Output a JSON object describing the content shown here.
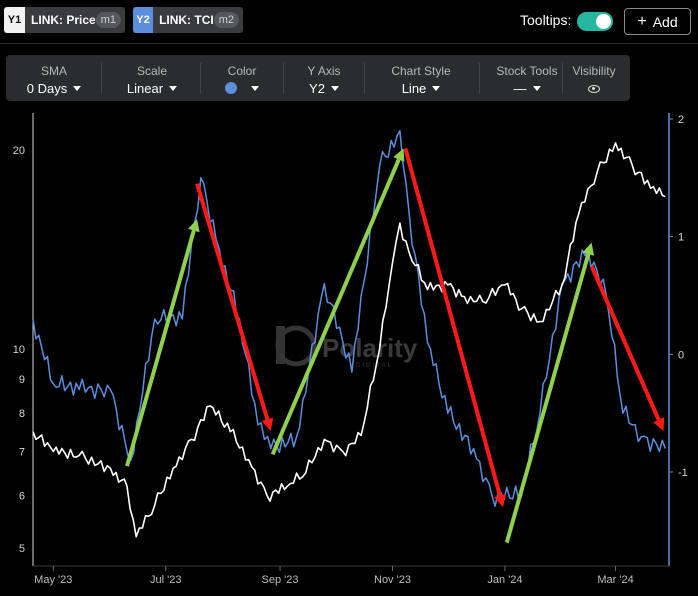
{
  "series_chips": [
    {
      "tag": "Y1",
      "label": "LINK: Price",
      "marker": "m1"
    },
    {
      "tag": "Y2",
      "label": "LINK: TCI",
      "marker": "m2"
    }
  ],
  "header": {
    "tooltips_label": "Tooltips:",
    "tooltips_on": true,
    "add_icon": "plus-icon",
    "add_label": "Add"
  },
  "toolbar": {
    "sma_label": "SMA",
    "sma_value": "0 Days",
    "scale_label": "Scale",
    "scale_value": "Linear",
    "color_label": "Color",
    "color_value": "#5b8fdc",
    "yaxis_label": "Y Axis",
    "yaxis_value": "Y2",
    "style_label": "Chart Style",
    "style_value": "Line",
    "tools_label": "Stock Tools",
    "tools_value": "—",
    "visibility_label": "Visibility",
    "visibility_icon": "eye-icon"
  },
  "watermark": {
    "brand": "Polarity",
    "sub": "DIGITAL"
  },
  "chart_data": {
    "type": "line",
    "left_axis": {
      "scale": "log",
      "ticks": [
        5,
        6,
        7,
        8,
        9,
        10,
        20
      ]
    },
    "right_axis": {
      "ticks": [
        2,
        1,
        0,
        -1
      ]
    },
    "x_ticks": [
      "May '23",
      "Jul '23",
      "Sep '23",
      "Nov '23",
      "Jan '24",
      "Mar '24"
    ],
    "series": [
      {
        "color": "#ffffff",
        "axis": "left",
        "x": [
          "2023-04-20",
          "2023-05-01",
          "2023-05-15",
          "2023-06-01",
          "2023-06-10",
          "2023-06-15",
          "2023-06-25",
          "2023-07-05",
          "2023-07-15",
          "2023-07-25",
          "2023-08-05",
          "2023-08-15",
          "2023-08-25",
          "2023-09-05",
          "2023-09-15",
          "2023-09-25",
          "2023-10-05",
          "2023-10-15",
          "2023-10-25",
          "2023-11-01",
          "2023-11-05",
          "2023-11-10",
          "2023-11-20",
          "2023-12-01",
          "2023-12-10",
          "2023-12-20",
          "2024-01-01",
          "2024-01-10",
          "2024-01-20",
          "2024-02-01",
          "2024-02-10",
          "2024-02-20",
          "2024-03-01",
          "2024-03-10",
          "2024-03-20",
          "2024-03-28"
        ],
        "y": [
          7.5,
          7.0,
          6.9,
          6.6,
          6.2,
          5.2,
          5.8,
          6.6,
          7.3,
          8.2,
          7.5,
          6.8,
          6.0,
          6.2,
          6.5,
          7.3,
          7.0,
          7.4,
          10.0,
          13.5,
          15.5,
          14.0,
          12.3,
          12.5,
          12.0,
          11.8,
          12.5,
          11.5,
          11.0,
          12.5,
          16.0,
          18.5,
          20.5,
          19.0,
          17.5,
          17.0
        ]
      },
      {
        "color": "#5b8fdc",
        "axis": "right",
        "x": [
          "2023-04-20",
          "2023-05-01",
          "2023-05-15",
          "2023-06-01",
          "2023-06-12",
          "2023-06-25",
          "2023-07-10",
          "2023-07-20",
          "2023-07-30",
          "2023-08-10",
          "2023-08-20",
          "2023-08-27",
          "2023-09-10",
          "2023-09-25",
          "2023-10-10",
          "2023-10-25",
          "2023-11-05",
          "2023-11-10",
          "2023-11-20",
          "2023-12-01",
          "2023-12-15",
          "2023-12-25",
          "2024-01-10",
          "2024-01-20",
          "2024-02-01",
          "2024-02-15",
          "2024-02-25",
          "2024-03-05",
          "2024-03-15",
          "2024-03-28"
        ],
        "y": [
          0.3,
          -0.25,
          -0.3,
          -0.3,
          -0.9,
          0.3,
          0.3,
          1.5,
          0.9,
          0.3,
          -0.6,
          -0.8,
          -0.7,
          0.6,
          -0.15,
          1.6,
          1.9,
          1.2,
          0.1,
          -0.5,
          -0.8,
          -1.2,
          -1.2,
          -0.5,
          0.6,
          0.9,
          0.5,
          -0.5,
          -0.7,
          -0.8
        ]
      }
    ],
    "annotations": [
      {
        "kind": "arrow",
        "color": "#8fd14f",
        "from": [
          "2023-06-10",
          -0.95
        ],
        "to": [
          "2023-07-18",
          1.15
        ]
      },
      {
        "kind": "arrow",
        "color": "#ff1a1a",
        "from": [
          "2023-07-18",
          1.45
        ],
        "to": [
          "2023-08-27",
          -0.65
        ]
      },
      {
        "kind": "arrow",
        "color": "#8fd14f",
        "from": [
          "2023-08-28",
          -0.85
        ],
        "to": [
          "2023-11-07",
          1.75
        ]
      },
      {
        "kind": "arrow",
        "color": "#ff1a1a",
        "from": [
          "2023-11-08",
          1.75
        ],
        "to": [
          "2023-12-31",
          -1.3
        ]
      },
      {
        "kind": "arrow",
        "color": "#8fd14f",
        "from": [
          "2024-01-02",
          -1.6
        ],
        "to": [
          "2024-02-17",
          0.95
        ]
      },
      {
        "kind": "arrow",
        "color": "#ff1a1a",
        "from": [
          "2024-02-17",
          0.75
        ],
        "to": [
          "2024-03-27",
          -0.65
        ]
      }
    ]
  }
}
